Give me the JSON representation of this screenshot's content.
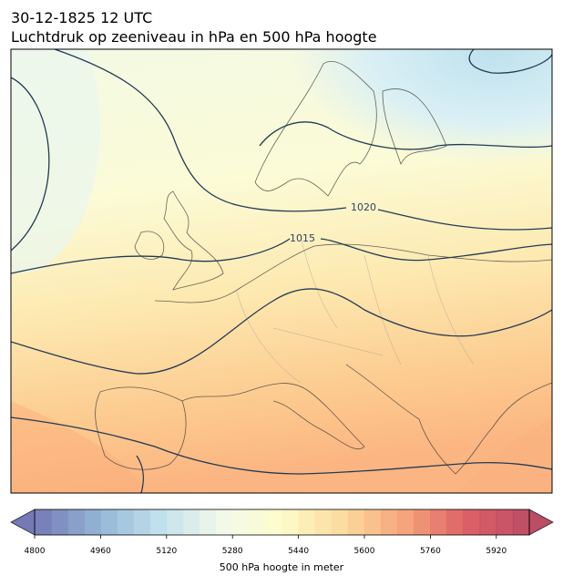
{
  "header": {
    "title": "30-12-1825 12 UTC",
    "subtitle": "Luchtdruk op zeeniveau in hPa en 500 hPa hoogte"
  },
  "map": {
    "contour_labels": [
      "1020",
      "1015"
    ]
  },
  "colorbar": {
    "label": "500 hPa hoogte in meter",
    "lim": [
      4800,
      6000
    ],
    "step": 40,
    "ticks": [
      4800,
      4960,
      5120,
      5280,
      5440,
      5600,
      5760,
      5920
    ],
    "cmap": [
      "#5e62aa",
      "#7fa6cc",
      "#b5dbea",
      "#f0f8e8",
      "#fdfbc2",
      "#fcd48c",
      "#f39465",
      "#d6444c",
      "#b02e4a"
    ]
  }
}
